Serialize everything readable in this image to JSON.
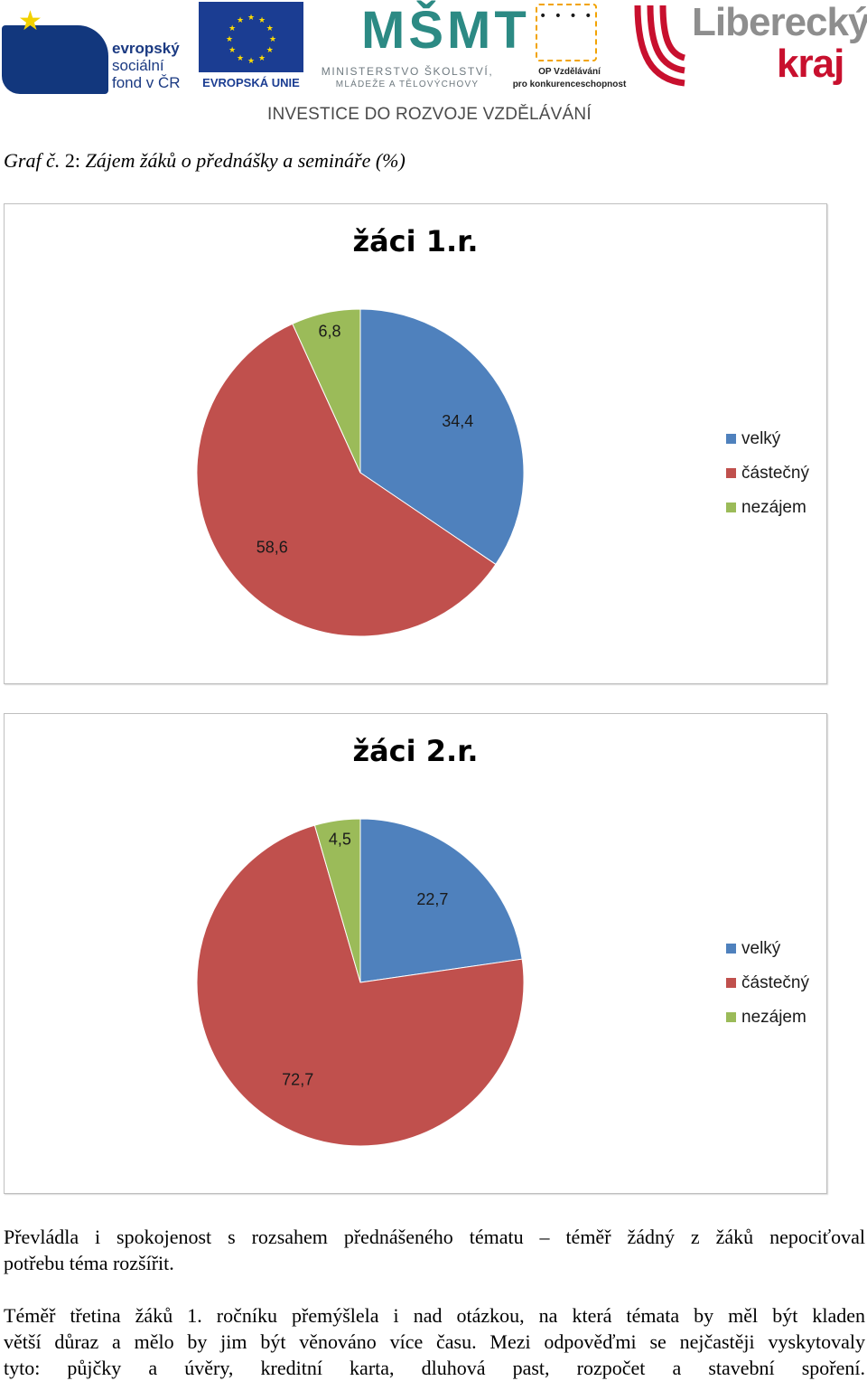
{
  "header": {
    "esf": {
      "line1": "evropský",
      "line2": "sociální",
      "line3": "fond v ČR"
    },
    "eu": "EVROPSKÁ UNIE",
    "msmt": {
      "mark": "MŠMT",
      "line1": "MINISTERSTVO ŠKOLSTVÍ,",
      "line2": "MLÁDEŽE A TĚLOVÝCHOVY"
    },
    "op": {
      "line1": "OP Vzdělávání",
      "line2": "pro konkurenceschopnost"
    },
    "kraj": {
      "line1": "Liberecký",
      "line2": "kraj"
    },
    "tagline": "INVESTICE DO ROZVOJE VZDĚLÁVÁNÍ"
  },
  "caption": {
    "italic": "Graf č.",
    "roman": " 2: ",
    "rest": "Zájem žáků o přednášky a semináře (%)"
  },
  "chart_data": [
    {
      "type": "pie",
      "title": "žáci 1.r.",
      "categories": [
        "velký",
        "částečný",
        "nezájem"
      ],
      "values": [
        34.4,
        58.6,
        6.8
      ],
      "labels": [
        "34,4",
        "58,6",
        "6,8"
      ],
      "colors": [
        "#4f81bd",
        "#c0504d",
        "#9bbb59"
      ],
      "legend": "right"
    },
    {
      "type": "pie",
      "title": "žáci 2.r.",
      "categories": [
        "velký",
        "částečný",
        "nezájem"
      ],
      "values": [
        22.7,
        72.7,
        4.5
      ],
      "labels": [
        "22,7",
        "72,7",
        "4,5"
      ],
      "colors": [
        "#4f81bd",
        "#c0504d",
        "#9bbb59"
      ],
      "legend": "right"
    }
  ],
  "paragraphs": [
    {
      "line1": "Převládla i spokojenost s rozsahem přednášeného tématu – téměř žádný z žáků nepociťoval",
      "line2": "potřebu téma rozšířit."
    },
    {
      "line1": "Téměř třetina žáků 1. ročníku přemýšlela i nad otázkou, na která témata by měl být kladen",
      "line2": "větší důraz a mělo by jim být věnováno více času. Mezi odpověďmi se nejčastěji vyskytovaly",
      "line3": "tyto: půjčky a úvěry, kreditní karta, dluhová past, rozpočet a stavební spoření."
    }
  ]
}
